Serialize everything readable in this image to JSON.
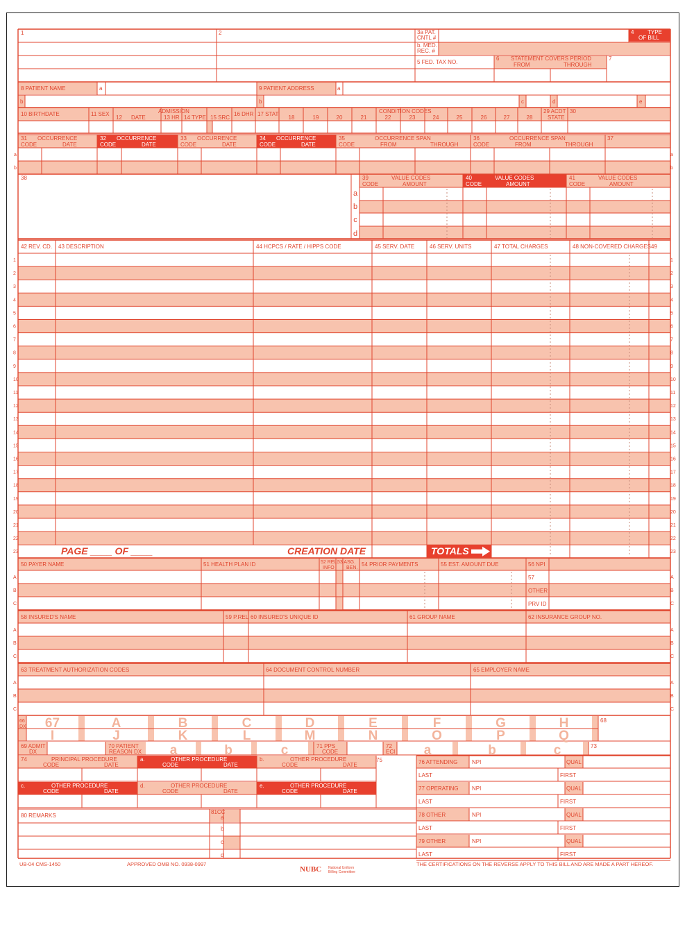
{
  "top": {
    "f1": "1",
    "f2": "2",
    "f3a": [
      "3a PAT.",
      "CNTL #"
    ],
    "f3b": [
      "b. MED.",
      "REC. #"
    ],
    "f4": [
      "4",
      "TYPE",
      "OF BILL"
    ],
    "f5": "5 FED. TAX NO.",
    "f6": [
      "6",
      "STATEMENT COVERS PERIOD",
      "FROM",
      "THROUGH"
    ],
    "f7": "7"
  },
  "patient": {
    "f8": "8 PATIENT  NAME",
    "f9": "9 PATIENT  ADDRESS",
    "a": "a",
    "b": "b",
    "c": "c",
    "d": "d",
    "e": "e"
  },
  "row10": {
    "f10": "10 BIRTHDATE",
    "f11": "11 SEX",
    "admission": "ADMISSION",
    "f12": "12",
    "date": "DATE",
    "f13": "13 HR",
    "f14": "14 TYPE",
    "f15": "15 SRC",
    "f16": "16 DHR",
    "f17": "17 STAT",
    "condition": "CONDITION CODES",
    "condition_nums": [
      "18",
      "19",
      "20",
      "21",
      "22",
      "23",
      "24",
      "25",
      "26",
      "27",
      "28"
    ],
    "f29": [
      "29 ACDT",
      "STATE"
    ],
    "f30": "30"
  },
  "occurrence": [
    {
      "num": "31",
      "title": "OCCURRENCE",
      "code": "CODE",
      "date": "DATE",
      "dark": false
    },
    {
      "num": "32",
      "title": "OCCURRENCE",
      "code": "CODE",
      "date": "DATE",
      "dark": true
    },
    {
      "num": "33",
      "title": "OCCURRENCE",
      "code": "CODE",
      "date": "DATE",
      "dark": false
    },
    {
      "num": "34",
      "title": "OCCURRENCE",
      "code": "CODE",
      "date": "DATE",
      "dark": true
    }
  ],
  "span": [
    {
      "num": "35",
      "title": "OCCURRENCE SPAN",
      "code": "CODE",
      "from": "FROM",
      "through": "THROUGH"
    },
    {
      "num": "36",
      "title": "OCCURRENCE SPAN",
      "code": "CODE",
      "from": "FROM",
      "through": "THROUGH"
    }
  ],
  "f37": "37",
  "f38": "38",
  "value_codes": [
    {
      "num": "39",
      "title": "VALUE CODES",
      "code": "CODE",
      "amount": "AMOUNT",
      "dark": false
    },
    {
      "num": "40",
      "title": "VALUE CODES",
      "code": "CODE",
      "amount": "AMOUNT",
      "dark": true
    },
    {
      "num": "41",
      "title": "VALUE CODES",
      "code": "CODE",
      "amount": "AMOUNT",
      "dark": false
    }
  ],
  "abcd": [
    "a",
    "b",
    "c",
    "d"
  ],
  "lines_header": {
    "f42": "42 REV. CD.",
    "f43": "43 DESCRIPTION",
    "f44": "44 HCPCS / RATE / HIPPS CODE",
    "f45": "45 SERV. DATE",
    "f46": "46 SERV. UNITS",
    "f47": "47 TOTAL CHARGES",
    "f48": "48 NON-COVERED CHARGES",
    "f49": "49"
  },
  "line_numbers": [
    "1",
    "2",
    "3",
    "4",
    "5",
    "6",
    "7",
    "8",
    "9",
    "10",
    "11",
    "12",
    "13",
    "14",
    "15",
    "16",
    "17",
    "18",
    "19",
    "20",
    "21",
    "22",
    "23"
  ],
  "row23": {
    "page": "PAGE ____  OF ____",
    "creation": "CREATION DATE",
    "totals": "TOTALS"
  },
  "payer": {
    "f50": "50 PAYER  NAME",
    "f51": "51 HEALTH PLAN ID",
    "f52": [
      "52 REL.",
      "INFO"
    ],
    "f53": [
      "53 ASG.",
      "BEN."
    ],
    "f54": "54 PRIOR PAYMENTS",
    "f55": "55 EST. AMOUNT DUE",
    "f56": "56 NPI",
    "f57": [
      "57",
      "OTHER",
      "PRV ID"
    ]
  },
  "abc": [
    "A",
    "B",
    "C"
  ],
  "insured": {
    "f58": "58 INSURED'S NAME",
    "f59": "59 P.REL",
    "f60": "60 INSURED'S UNIQUE ID",
    "f61": "61 GROUP NAME",
    "f62": "62 INSURANCE GROUP NO."
  },
  "treatment": {
    "f63": "63 TREATMENT  AUTHORIZATION CODES",
    "f64": "64 DOCUMENT CONTROL NUMBER",
    "f65": "65 EMPLOYER NAME"
  },
  "dx": {
    "f66": [
      "66",
      "DX"
    ],
    "top_letters": [
      "67",
      "A",
      "B",
      "C",
      "D",
      "E",
      "F",
      "G",
      "H"
    ],
    "bottom_letters": [
      "I",
      "J",
      "K",
      "L",
      "M",
      "N",
      "O",
      "P",
      "Q"
    ],
    "f68": "68"
  },
  "row69": {
    "f69": [
      "69 ADMIT",
      "DX"
    ],
    "f70": [
      "70 PATIENT",
      "REASON DX"
    ],
    "reason_letters": [
      "a",
      "b",
      "c"
    ],
    "f71": [
      "71 PPS",
      "CODE"
    ],
    "f72": [
      "72",
      "ECI"
    ],
    "eci_letters": [
      "a",
      "b",
      "c"
    ],
    "f73": "73"
  },
  "procedures": {
    "f74": "74",
    "principal": "PRINCIPAL PROCEDURE",
    "other": "OTHER PROCEDURE",
    "code": "CODE",
    "date": "DATE",
    "letters": [
      "a.",
      "b.",
      "c.",
      "d.",
      "e."
    ],
    "f75": "75"
  },
  "physicians": [
    {
      "label": "76 ATTENDING",
      "npi": "NPI",
      "qual": "QUAL",
      "last": "LAST",
      "first": "FIRST"
    },
    {
      "label": "77 OPERATING",
      "npi": "NPI",
      "qual": "QUAL",
      "last": "LAST",
      "first": "FIRST"
    },
    {
      "label": "78 OTHER",
      "npi": "NPI",
      "qual": "QUAL",
      "last": "LAST",
      "first": "FIRST"
    },
    {
      "label": "79 OTHER",
      "npi": "NPI",
      "qual": "QUAL",
      "last": "LAST",
      "first": "FIRST"
    }
  ],
  "remarks": {
    "f80": "80 REMARKS",
    "f81": "81CC",
    "letters": [
      "a",
      "b",
      "c",
      "d"
    ]
  },
  "footer": {
    "form_id": "UB-04 CMS-1450",
    "omb": "APPROVED OMB NO. 0938-0997",
    "nubc": "NUBC",
    "nubc_sub": [
      "National Uniform",
      "Billing Committee"
    ],
    "cert": "THE CERTIFICATIONS ON THE REVERSE APPLY TO THIS BILL AND ARE MADE A PART HEREOF."
  },
  "colors": {
    "line": "#e0462f",
    "shade": "#f8c3ae",
    "dark": "#e8402e"
  }
}
